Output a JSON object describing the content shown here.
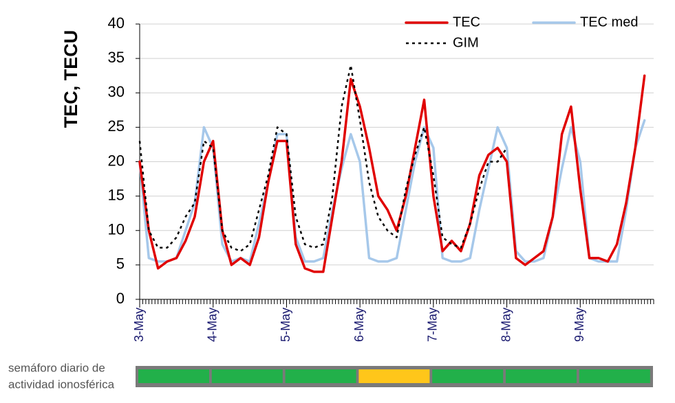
{
  "chart_data": {
    "type": "line",
    "ylabel": "TEC, TECU",
    "categories": [
      "3-May",
      null,
      null,
      null,
      null,
      null,
      null,
      null,
      "4-May",
      null,
      null,
      null,
      null,
      null,
      null,
      null,
      "5-May",
      null,
      null,
      null,
      null,
      null,
      null,
      null,
      "6-May",
      null,
      null,
      null,
      null,
      null,
      null,
      null,
      "7-May",
      null,
      null,
      null,
      null,
      null,
      null,
      null,
      "8-May",
      null,
      null,
      null,
      null,
      null,
      null,
      null,
      "9-May",
      null,
      null,
      null,
      null,
      null,
      null,
      null,
      null
    ],
    "series": [
      {
        "name": "TEC",
        "color": "#e00000",
        "style": "solid",
        "values": [
          20,
          10,
          4.5,
          5.5,
          6,
          8.5,
          12,
          20,
          23,
          10,
          5,
          6,
          5,
          9,
          17,
          23,
          23,
          8,
          4.5,
          4,
          4,
          12,
          20,
          32,
          28,
          22,
          15,
          13,
          10,
          15,
          22,
          29,
          15,
          7,
          8.5,
          7,
          11,
          18,
          21,
          22,
          20,
          6,
          5,
          6,
          7,
          12,
          24,
          28,
          16,
          6,
          6,
          5.5,
          8,
          14,
          22,
          32.5,
          null
        ]
      },
      {
        "name": "TEC med",
        "color": "#a6c8ea",
        "style": "solid",
        "values": [
          20,
          6,
          5.5,
          5.5,
          6,
          10,
          14,
          25,
          22,
          8,
          5.5,
          6,
          5.5,
          11,
          17,
          24,
          24,
          9,
          5.5,
          5.5,
          6,
          13,
          19,
          24,
          20,
          6,
          5.5,
          5.5,
          6,
          13,
          20,
          25,
          22,
          6,
          5.5,
          5.5,
          6,
          13,
          19,
          25,
          22,
          7,
          5.5,
          5.5,
          6,
          12,
          19,
          25,
          20,
          6,
          5.5,
          5.5,
          5.5,
          13,
          22,
          26,
          null
        ]
      },
      {
        "name": "GIM",
        "color": "#000000",
        "style": "dotted",
        "values": [
          23,
          10,
          7.5,
          7.5,
          9,
          12,
          14,
          23,
          22,
          10,
          7.5,
          7,
          8,
          13,
          18,
          25,
          24,
          12,
          8,
          7.5,
          8,
          15,
          28,
          34,
          26,
          17,
          12,
          10,
          9,
          16,
          21,
          25,
          18,
          9,
          8,
          7.5,
          11,
          16,
          20,
          20,
          22,
          null,
          null,
          null,
          null,
          null,
          null,
          null,
          null,
          null,
          null,
          null,
          null,
          null,
          null,
          null,
          null
        ]
      }
    ],
    "ylim": [
      0,
      40
    ],
    "yticks": [
      0,
      5,
      10,
      15,
      20,
      25,
      30,
      35,
      40
    ],
    "grid": true,
    "legend": "top-right",
    "semaforo": {
      "label": [
        "semáforo diario de",
        "actividad ionosférica"
      ],
      "colors": [
        "#22b04a",
        "#22b04a",
        "#22b04a",
        "#ffc61a",
        "#22b04a",
        "#22b04a",
        "#22b04a"
      ]
    }
  }
}
